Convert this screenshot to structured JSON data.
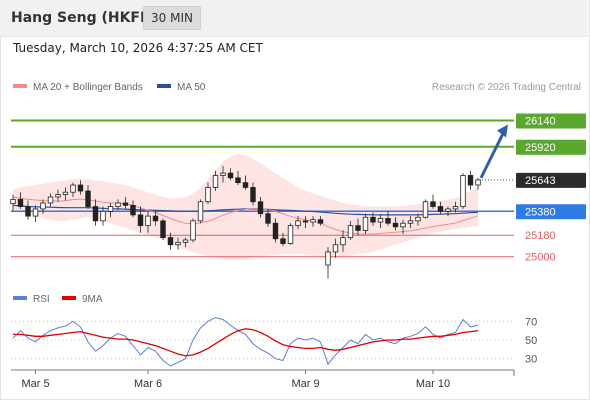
{
  "header": {
    "title": "Hang Seng (HKFE)",
    "interval": "30 MIN"
  },
  "timestamp": "Tuesday, March 10, 2026 4:37:25 AM CET",
  "credit": "Research © 2026 Trading Central",
  "colors": {
    "bollinger_fill": "#ffd9d9",
    "ma20": "#f48a8a",
    "ma50": "#2e4f9e",
    "resistance": "#59a82d",
    "support": "#e55d5d",
    "pivot": "#2f7ae5",
    "last": "#2b2b2b",
    "arrow": "#2f5fa6",
    "rsi": "#5b7fd6",
    "rsi_ma": "#e10000"
  },
  "chart_data": [
    {
      "type": "line",
      "title": "",
      "legend": [
        {
          "name": "MA 20 + Bollinger Bands",
          "color": "#f48a8a"
        },
        {
          "name": "MA 50",
          "color": "#2e4f9e"
        }
      ],
      "x_ticks": [
        "Mar 5",
        "Mar 6",
        "Mar 9",
        "Mar 10"
      ],
      "ylim": [
        24830,
        26270
      ],
      "grid": false,
      "levels": [
        {
          "value": 26140,
          "label": "26140",
          "type": "resistance"
        },
        {
          "value": 25920,
          "label": "25920",
          "type": "resistance"
        },
        {
          "value": 25643,
          "label": "25643",
          "type": "last"
        },
        {
          "value": 25380,
          "label": "25380",
          "type": "pivot"
        },
        {
          "value": 25180,
          "label": "25180",
          "type": "support"
        },
        {
          "value": 25000,
          "label": "25000",
          "type": "support"
        }
      ],
      "candles": [
        [
          25445,
          25520,
          25380,
          25480
        ],
        [
          25480,
          25540,
          25400,
          25420
        ],
        [
          25420,
          25470,
          25310,
          25340
        ],
        [
          25340,
          25430,
          25290,
          25400
        ],
        [
          25400,
          25480,
          25360,
          25450
        ],
        [
          25450,
          25530,
          25420,
          25500
        ],
        [
          25500,
          25560,
          25460,
          25520
        ],
        [
          25520,
          25580,
          25470,
          25540
        ],
        [
          25540,
          25620,
          25500,
          25600
        ],
        [
          25600,
          25640,
          25520,
          25550
        ],
        [
          25550,
          25600,
          25400,
          25420
        ],
        [
          25420,
          25480,
          25260,
          25300
        ],
        [
          25300,
          25420,
          25260,
          25380
        ],
        [
          25380,
          25450,
          25330,
          25420
        ],
        [
          25420,
          25480,
          25390,
          25450
        ],
        [
          25450,
          25500,
          25400,
          25430
        ],
        [
          25430,
          25470,
          25330,
          25350
        ],
        [
          25350,
          25420,
          25200,
          25260
        ],
        [
          25260,
          25380,
          25200,
          25340
        ],
        [
          25340,
          25380,
          25260,
          25300
        ],
        [
          25300,
          25320,
          25140,
          25160
        ],
        [
          25160,
          25200,
          25060,
          25100
        ],
        [
          25100,
          25160,
          25060,
          25120
        ],
        [
          25120,
          25160,
          25080,
          25140
        ],
        [
          25140,
          25320,
          25120,
          25300
        ],
        [
          25300,
          25480,
          25280,
          25460
        ],
        [
          25460,
          25620,
          25440,
          25580
        ],
        [
          25580,
          25720,
          25550,
          25680
        ],
        [
          25680,
          25760,
          25620,
          25700
        ],
        [
          25700,
          25740,
          25640,
          25660
        ],
        [
          25660,
          25720,
          25600,
          25620
        ],
        [
          25620,
          25680,
          25560,
          25580
        ],
        [
          25580,
          25620,
          25430,
          25460
        ],
        [
          25460,
          25500,
          25330,
          25360
        ],
        [
          25360,
          25400,
          25250,
          25280
        ],
        [
          25280,
          25320,
          25120,
          25150
        ],
        [
          25150,
          25200,
          25090,
          25110
        ],
        [
          25110,
          25280,
          25100,
          25260
        ],
        [
          25260,
          25340,
          25230,
          25300
        ],
        [
          25300,
          25340,
          25240,
          25290
        ],
        [
          25290,
          25340,
          25250,
          25310
        ],
        [
          25310,
          25340,
          25260,
          25280
        ],
        [
          24930,
          25080,
          24820,
          25040
        ],
        [
          25040,
          25150,
          24990,
          25100
        ],
        [
          25100,
          25220,
          25040,
          25160
        ],
        [
          25160,
          25300,
          25140,
          25260
        ],
        [
          25260,
          25320,
          25180,
          25220
        ],
        [
          25220,
          25360,
          25190,
          25330
        ],
        [
          25330,
          25370,
          25260,
          25290
        ],
        [
          25290,
          25350,
          25240,
          25320
        ],
        [
          25320,
          25380,
          25260,
          25280
        ],
        [
          25280,
          25330,
          25220,
          25250
        ],
        [
          25250,
          25310,
          25190,
          25280
        ],
        [
          25280,
          25340,
          25240,
          25300
        ],
        [
          25300,
          25360,
          25260,
          25330
        ],
        [
          25330,
          25480,
          25320,
          25460
        ],
        [
          25460,
          25520,
          25400,
          25420
        ],
        [
          25420,
          25460,
          25360,
          25380
        ],
        [
          25380,
          25420,
          25340,
          25400
        ],
        [
          25400,
          25460,
          25370,
          25420
        ],
        [
          25420,
          25700,
          25400,
          25680
        ],
        [
          25680,
          25720,
          25560,
          25600
        ],
        [
          25600,
          25660,
          25560,
          25643
        ]
      ],
      "ma20": [
        25500,
        25490,
        25480,
        25475,
        25470,
        25468,
        25465,
        25470,
        25478,
        25482,
        25478,
        25466,
        25455,
        25450,
        25448,
        25445,
        25430,
        25408,
        25388,
        25370,
        25345,
        25320,
        25298,
        25280,
        25275,
        25282,
        25298,
        25320,
        25348,
        25368,
        25385,
        25398,
        25405,
        25403,
        25394,
        25378,
        25358,
        25338,
        25322,
        25310,
        25300,
        25282,
        25252,
        25228,
        25210,
        25198,
        25190,
        25188,
        25190,
        25195,
        25200,
        25205,
        25210,
        25218,
        25228,
        25240,
        25252,
        25262,
        25272,
        25282,
        25302,
        25322,
        25342
      ],
      "bollinger_upper": [
        25560,
        25580,
        25590,
        25600,
        25610,
        25620,
        25630,
        25640,
        25650,
        25655,
        25650,
        25640,
        25630,
        25620,
        25610,
        25600,
        25580,
        25560,
        25540,
        25520,
        25500,
        25490,
        25490,
        25500,
        25530,
        25580,
        25650,
        25720,
        25790,
        25840,
        25860,
        25850,
        25820,
        25780,
        25740,
        25700,
        25660,
        25620,
        25580,
        25550,
        25530,
        25510,
        25490,
        25470,
        25450,
        25440,
        25430,
        25420,
        25420,
        25420,
        25420,
        25420,
        25425,
        25430,
        25440,
        25450,
        25460,
        25470,
        25480,
        25490,
        25520,
        25550,
        25580
      ],
      "bollinger_lower": [
        25400,
        25380,
        25360,
        25340,
        25320,
        25310,
        25300,
        25300,
        25310,
        25320,
        25330,
        25320,
        25300,
        25280,
        25260,
        25240,
        25220,
        25200,
        25180,
        25160,
        25140,
        25110,
        25080,
        25060,
        25040,
        25020,
        25000,
        24990,
        24980,
        24975,
        24975,
        24980,
        24990,
        25000,
        25010,
        25015,
        25020,
        25020,
        25020,
        25015,
        25010,
        25005,
        25000,
        25000,
        25005,
        25010,
        25020,
        25030,
        25040,
        25060,
        25080,
        25100,
        25120,
        25140,
        25160,
        25180,
        25200,
        25210,
        25220,
        25230,
        25240,
        25250,
        25260
      ],
      "ma50": [
        25430,
        25425,
        25420,
        25418,
        25416,
        25414,
        25412,
        25410,
        25410,
        25410,
        25410,
        25408,
        25405,
        25402,
        25400,
        25398,
        25395,
        25392,
        25390,
        25388,
        25386,
        25384,
        25382,
        25380,
        25380,
        25382,
        25385,
        25388,
        25392,
        25395,
        25398,
        25400,
        25400,
        25398,
        25396,
        25393,
        25390,
        25388,
        25385,
        25382,
        25378,
        25374,
        25368,
        25363,
        25359,
        25356,
        25354,
        25352,
        25351,
        25350,
        25350,
        25350,
        25350,
        25350,
        25351,
        25352,
        25354,
        25356,
        25358,
        25360,
        25364,
        25368,
        25372
      ]
    },
    {
      "type": "line",
      "title": "",
      "legend": [
        {
          "name": "RSI",
          "color": "#5b7fd6"
        },
        {
          "name": "9MA",
          "color": "#e10000"
        }
      ],
      "ylim": [
        20,
        80
      ],
      "y_ticks": [
        "70",
        "50",
        "30"
      ],
      "grid": false,
      "rsi": [
        52,
        60,
        52,
        48,
        55,
        60,
        63,
        65,
        70,
        64,
        48,
        38,
        44,
        52,
        57,
        54,
        44,
        34,
        42,
        38,
        28,
        22,
        26,
        30,
        50,
        63,
        70,
        74,
        72,
        66,
        60,
        56,
        46,
        40,
        36,
        30,
        28,
        46,
        52,
        50,
        52,
        48,
        24,
        34,
        42,
        50,
        46,
        56,
        50,
        52,
        48,
        46,
        52,
        54,
        57,
        64,
        56,
        52,
        56,
        58,
        72,
        64,
        66
      ],
      "rsi_ma": [
        56,
        56,
        55,
        54,
        54,
        55,
        56,
        57,
        58,
        59,
        57,
        55,
        53,
        52,
        51,
        51,
        50,
        48,
        46,
        44,
        41,
        38,
        35,
        33,
        34,
        37,
        41,
        46,
        51,
        56,
        60,
        62,
        61,
        58,
        54,
        49,
        45,
        43,
        42,
        41,
        41,
        42,
        40,
        39,
        40,
        42,
        44,
        46,
        48,
        49,
        50,
        50,
        51,
        51,
        52,
        53,
        54,
        54,
        55,
        56,
        58,
        59,
        60
      ]
    }
  ]
}
